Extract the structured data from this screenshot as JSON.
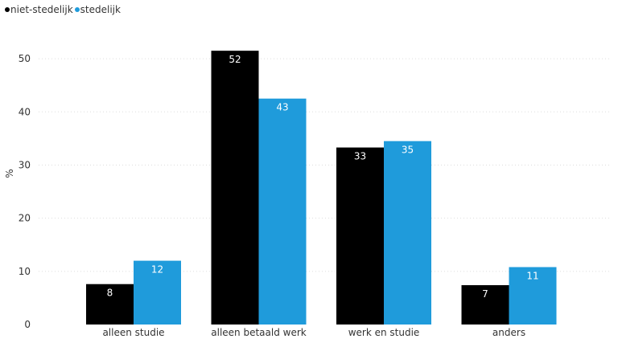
{
  "chart_data": {
    "type": "bar",
    "title": "",
    "xlabel": "",
    "ylabel": "%",
    "ylim": [
      0,
      55
    ],
    "yticks": [
      0,
      10,
      20,
      30,
      40,
      50
    ],
    "grid": true,
    "legend_position": "top-left",
    "categories": [
      "alleen studie",
      "alleen betaald werk",
      "werk en studie",
      "anders"
    ],
    "series": [
      {
        "name": "niet-stedelijk",
        "color": "#000000",
        "label_color": "#ffffff",
        "values": [
          7.6,
          51.5,
          33.3,
          7.4
        ],
        "labels": [
          "8",
          "52",
          "33",
          "7"
        ]
      },
      {
        "name": "stedelijk",
        "color": "#1f9bdb",
        "label_color": "#ffffff",
        "values": [
          12.0,
          42.5,
          34.5,
          10.8
        ],
        "labels": [
          "12",
          "43",
          "35",
          "11"
        ]
      }
    ]
  }
}
